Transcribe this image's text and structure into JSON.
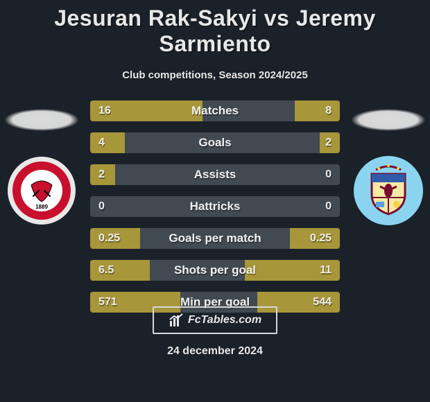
{
  "title": "Jesuran Rak-Sakyi vs Jeremy Sarmiento",
  "subtitle": "Club competitions, Season 2024/2025",
  "footer_brand": "FcTables.com",
  "date": "24 december 2024",
  "colors": {
    "background": "#1a2129",
    "bar_track": "#414951",
    "bar_fill": "#a7963a",
    "text": "#e8e8e8"
  },
  "left_crest": {
    "ring_color": "#e8e8e8",
    "inner_color": "#c8102e",
    "label": "SHEFFIELD UNITED",
    "year": "1889"
  },
  "right_crest": {
    "bg_color": "#8bd4f0",
    "shield_stroke": "#7a0c2e"
  },
  "stats": [
    {
      "label": "Matches",
      "left_val": "16",
      "right_val": "8",
      "left_pct": 45,
      "right_pct": 18
    },
    {
      "label": "Goals",
      "left_val": "4",
      "right_val": "2",
      "left_pct": 14,
      "right_pct": 8
    },
    {
      "label": "Assists",
      "left_val": "2",
      "right_val": "0",
      "left_pct": 10,
      "right_pct": 0
    },
    {
      "label": "Hattricks",
      "left_val": "0",
      "right_val": "0",
      "left_pct": 0,
      "right_pct": 0
    },
    {
      "label": "Goals per match",
      "left_val": "0.25",
      "right_val": "0.25",
      "left_pct": 20,
      "right_pct": 20
    },
    {
      "label": "Shots per goal",
      "left_val": "6.5",
      "right_val": "11",
      "left_pct": 24,
      "right_pct": 38
    },
    {
      "label": "Min per goal",
      "left_val": "571",
      "right_val": "544",
      "left_pct": 36,
      "right_pct": 33
    }
  ]
}
